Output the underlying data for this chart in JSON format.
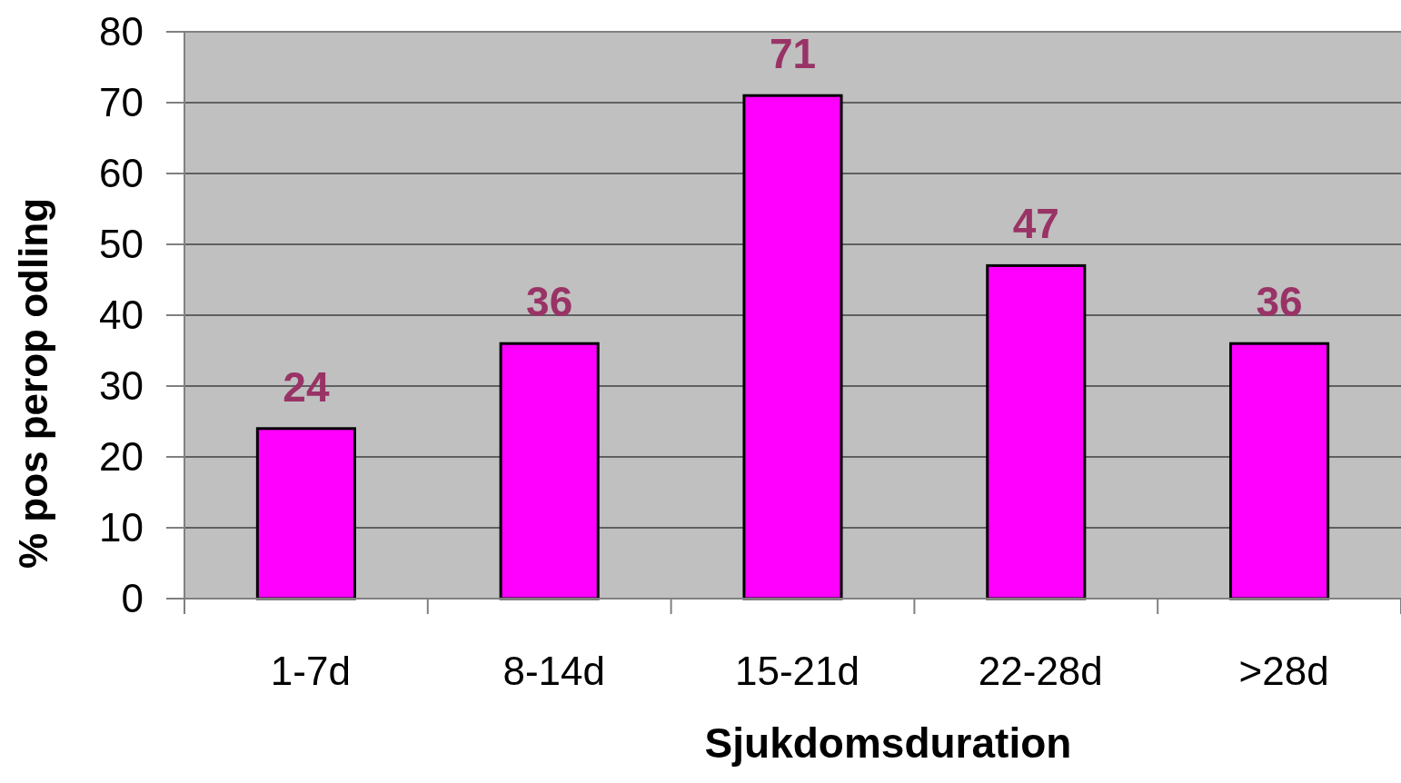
{
  "chart_data": {
    "type": "bar",
    "xlabel": "Sjukdomsduration",
    "ylabel": "% pos perop odling",
    "categories": [
      "1-7d",
      "8-14d",
      "15-21d",
      "22-28d",
      ">28d"
    ],
    "values": [
      24,
      36,
      71,
      47,
      36
    ],
    "color": "#ff00ff",
    "ylim": [
      0,
      80
    ],
    "yticks": [
      0,
      10,
      20,
      30,
      40,
      50,
      60,
      70,
      80
    ],
    "grid": "y",
    "data_labels": true
  }
}
